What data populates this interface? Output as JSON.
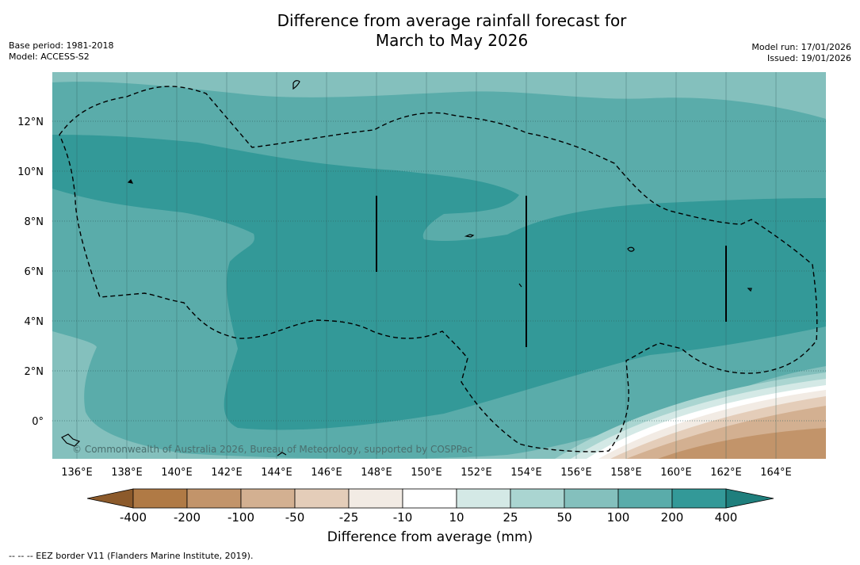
{
  "title_line1": "Difference from average rainfall forecast for",
  "title_line2": "March to May 2026",
  "meta_left": {
    "base_period": "Base period: 1981-2018",
    "model": "Model: ACCESS-S2"
  },
  "meta_right": {
    "model_run": "Model run: 17/01/2026",
    "issued": "Issued: 19/01/2026"
  },
  "map": {
    "lat_labels": [
      "12°N",
      "10°N",
      "8°N",
      "6°N",
      "4°N",
      "2°N",
      "0°"
    ],
    "lon_labels": [
      "136°E",
      "138°E",
      "140°E",
      "142°E",
      "144°E",
      "146°E",
      "148°E",
      "150°E",
      "152°E",
      "154°E",
      "156°E",
      "158°E",
      "160°E",
      "162°E",
      "164°E"
    ],
    "copyright": "© Commonwealth of Australia 2026, Bureau of Meteorology, supported by COSPPac"
  },
  "legend": {
    "ticks": [
      "-400",
      "-200",
      "-100",
      "-50",
      "-25",
      "-10",
      "10",
      "25",
      "50",
      "100",
      "200",
      "400"
    ],
    "colors": [
      "#8c5a2b",
      "#b07a45",
      "#c2946a",
      "#d3b091",
      "#e4cdb9",
      "#f2ebe4",
      "#ffffff",
      "#d4e9e6",
      "#aad5d1",
      "#84c0bd",
      "#5aacaa",
      "#339998",
      "#1f7f7d"
    ],
    "title": "Difference from average (mm)"
  },
  "footnote": "--  --  -- EEZ border V11 (Flanders Marine Institute, 2019)."
}
